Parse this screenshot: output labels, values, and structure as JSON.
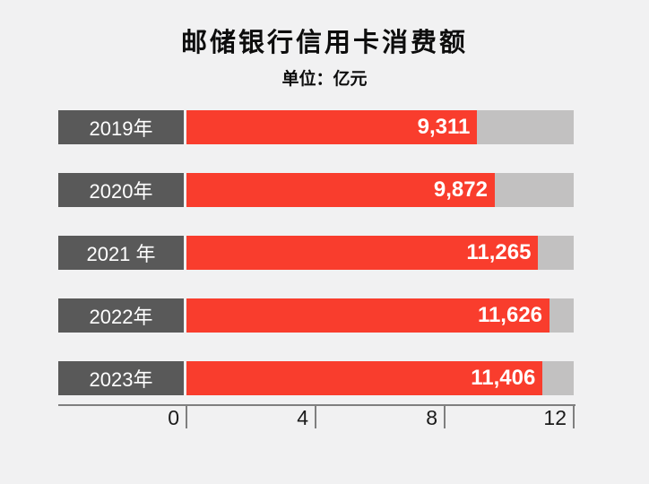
{
  "chart_data": {
    "type": "bar",
    "orientation": "horizontal",
    "title": "邮储银行信用卡消费额",
    "subtitle": "单位：亿元",
    "unit": "亿元",
    "categories": [
      "2019年",
      "2020年",
      "2021 年",
      "2022年",
      "2023年"
    ],
    "values": [
      9311,
      9872,
      11265,
      11626,
      11406
    ],
    "value_labels": [
      "9,311",
      "9,872",
      "11,265",
      "11,626",
      "11,406"
    ],
    "axis": {
      "position": "bottom",
      "ticks": [
        0,
        4,
        8,
        12
      ],
      "tick_scale": 1000,
      "xlim": [
        0,
        12000
      ],
      "grid": false
    },
    "bar_render_max": 12400,
    "legend": "none",
    "colors": {
      "background": "#F1F1F2",
      "bar_fill": "#F93D2D",
      "bar_track": "#C2C1C1",
      "category_box": "#595959",
      "category_text": "#FFFFFF",
      "value_text": "#FFFFFF",
      "axis_line": "#7F7F7F",
      "axis_text": "#1A1A1A",
      "title_text": "#0D0D0D"
    }
  }
}
